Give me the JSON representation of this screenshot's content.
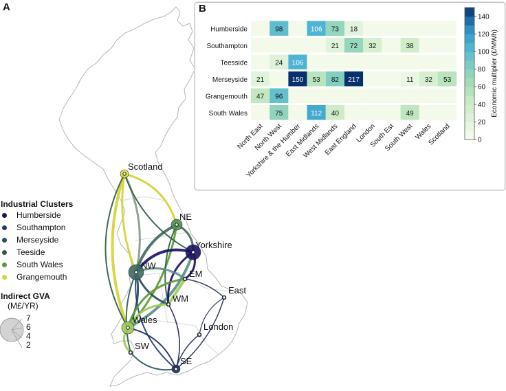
{
  "panels": {
    "a": "A",
    "b": "B"
  },
  "map": {
    "legend": {
      "clusters_title": "Industrial Clusters",
      "clusters": [
        {
          "name": "Humberside",
          "color": "#1b1464"
        },
        {
          "name": "Southampton",
          "color": "#253a74"
        },
        {
          "name": "Merseyside",
          "color": "#28505c"
        },
        {
          "name": "Teeside",
          "color": "#2f5e47"
        },
        {
          "name": "South Wales",
          "color": "#5c9a3a"
        },
        {
          "name": "Grangemouth",
          "color": "#d6d335"
        }
      ],
      "size_title": "Indirect GVA",
      "size_unit": "(M£/YR)",
      "size_values": [
        "7",
        "6",
        "4",
        "2"
      ]
    },
    "regions": [
      {
        "name": "Scotland",
        "color": "#e3e03a"
      },
      {
        "name": "NE",
        "color": "#4f8f52"
      },
      {
        "name": "Yorkshire",
        "color": "#1b1464"
      },
      {
        "name": "NW",
        "color": "#3f6b62"
      },
      {
        "name": "EM",
        "color": "#2c3e68"
      },
      {
        "name": "East",
        "color": "#27365e"
      },
      {
        "name": "WM",
        "color": "#6f9d52"
      },
      {
        "name": "Wales",
        "color": "#9ccc56"
      },
      {
        "name": "London",
        "color": "#27365e"
      },
      {
        "name": "SW",
        "color": "#8fbf45"
      },
      {
        "name": "SE",
        "color": "#1f2f5c"
      }
    ]
  },
  "chart_data": {
    "type": "heatmap",
    "rows": [
      "Humberside",
      "Southampton",
      "Teesside",
      "Merseyside",
      "Grangemouth",
      "South Wales"
    ],
    "columns": [
      "North East",
      "North West",
      "Yorkshire & the Humber",
      "East Midlands",
      "West Midlands",
      "East England",
      "London",
      "South Est",
      "South West",
      "Wales",
      "Scotland"
    ],
    "values": [
      [
        null,
        98,
        null,
        106,
        73,
        18,
        null,
        null,
        null,
        null,
        null
      ],
      [
        null,
        null,
        null,
        null,
        21,
        72,
        32,
        null,
        38,
        null,
        null
      ],
      [
        null,
        24,
        106,
        null,
        null,
        null,
        null,
        null,
        null,
        null,
        null
      ],
      [
        21,
        null,
        150,
        53,
        82,
        217,
        null,
        null,
        11,
        32,
        53
      ],
      [
        47,
        96,
        null,
        null,
        null,
        null,
        null,
        null,
        null,
        null,
        null
      ],
      [
        null,
        75,
        null,
        112,
        40,
        null,
        null,
        null,
        49,
        null,
        null
      ]
    ],
    "colorbar": {
      "label": "Economic multiplier (£/MWh)",
      "ticks": [
        "0",
        "20",
        "40",
        "60",
        "80",
        "100",
        "120",
        "140"
      ],
      "min": 0,
      "max": 150
    }
  }
}
